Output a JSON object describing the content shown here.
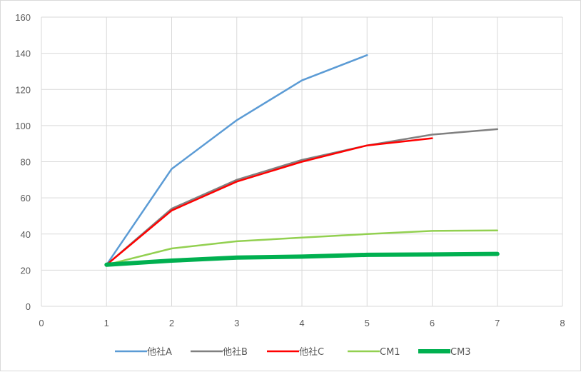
{
  "chart_data": {
    "type": "line",
    "title": "",
    "xlabel": "",
    "ylabel": "",
    "xlim": [
      0,
      8
    ],
    "ylim": [
      0,
      160
    ],
    "x_ticks": [
      0,
      1,
      2,
      3,
      4,
      5,
      6,
      7,
      8
    ],
    "y_ticks": [
      0,
      20,
      40,
      60,
      80,
      100,
      120,
      140,
      160
    ],
    "grid": true,
    "legend_position": "bottom",
    "series": [
      {
        "name": "他社A",
        "color": "#5b9bd5",
        "width": 2.5,
        "x": [
          1,
          2,
          3,
          4,
          5
        ],
        "y": [
          23,
          76,
          103,
          125,
          139
        ]
      },
      {
        "name": "他社B",
        "color": "#808080",
        "width": 2.5,
        "x": [
          1,
          2,
          3,
          4,
          5,
          6,
          7
        ],
        "y": [
          23,
          54,
          70,
          81,
          89,
          95,
          98
        ]
      },
      {
        "name": "他社C",
        "color": "#ff0000",
        "width": 2.5,
        "x": [
          1,
          2,
          3,
          4,
          5,
          6
        ],
        "y": [
          23,
          53,
          69,
          80,
          89,
          93
        ]
      },
      {
        "name": "CM1",
        "color": "#92d050",
        "width": 2.5,
        "x": [
          1,
          2,
          3,
          4,
          5,
          6,
          7
        ],
        "y": [
          23,
          32,
          36,
          38,
          40,
          41.7,
          42
        ]
      },
      {
        "name": "CM3",
        "color": "#00b050",
        "width": 6,
        "x": [
          1,
          2,
          3,
          4,
          5,
          6,
          7
        ],
        "y": [
          23,
          25.3,
          27,
          27.5,
          28.5,
          28.7,
          29
        ]
      }
    ]
  }
}
